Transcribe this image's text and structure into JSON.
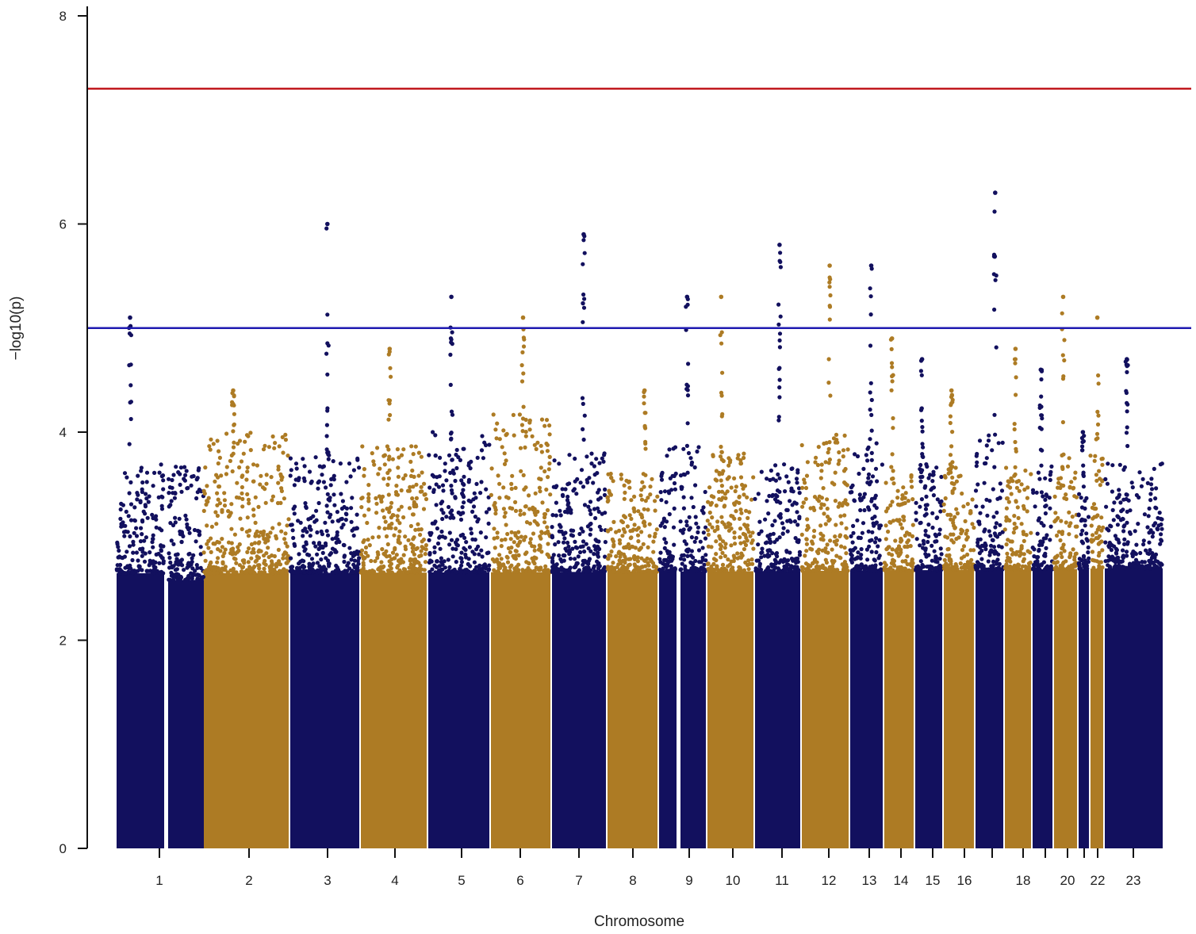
{
  "chart_data": {
    "type": "scatter",
    "subtype": "manhattan",
    "xlabel": "Chromosome",
    "ylabel": "−log10(p)",
    "ylim": [
      0,
      8
    ],
    "yticks": [
      0,
      2,
      4,
      6,
      8
    ],
    "grid": false,
    "legend": "none",
    "colors": {
      "odd_chromosome": "#12105e",
      "even_chromosome": "#ad7b24",
      "genome_wide_line": "#c0171c",
      "suggestive_line": "#1f1ab0"
    },
    "thresholds": [
      {
        "name": "genome-wide significance",
        "value": 7.3,
        "color": "#c0171c"
      },
      {
        "name": "suggestive significance",
        "value": 5.0,
        "color": "#1f1ab0"
      }
    ],
    "x_tick_labels": [
      "1",
      "2",
      "3",
      "4",
      "5",
      "6",
      "7",
      "8",
      "9",
      "10",
      "11",
      "12",
      "13",
      "14",
      "15",
      "16",
      "18",
      "20",
      "22",
      "23"
    ],
    "chromosomes": [
      {
        "chr": "1",
        "baseline_max": 3.3,
        "peak": 5.1
      },
      {
        "chr": "2",
        "baseline_max": 3.6,
        "peak": 4.4
      },
      {
        "chr": "3",
        "baseline_max": 3.4,
        "peak": 6.0
      },
      {
        "chr": "4",
        "baseline_max": 3.5,
        "peak": 4.8
      },
      {
        "chr": "5",
        "baseline_max": 3.6,
        "peak": 5.3
      },
      {
        "chr": "6",
        "baseline_max": 3.8,
        "peak": 5.1
      },
      {
        "chr": "7",
        "baseline_max": 3.4,
        "peak": 5.9
      },
      {
        "chr": "8",
        "baseline_max": 3.2,
        "peak": 4.4
      },
      {
        "chr": "9",
        "baseline_max": 3.5,
        "peak": 5.3
      },
      {
        "chr": "10",
        "baseline_max": 3.4,
        "peak": 5.3
      },
      {
        "chr": "11",
        "baseline_max": 3.3,
        "peak": 5.8
      },
      {
        "chr": "12",
        "baseline_max": 3.6,
        "peak": 5.6
      },
      {
        "chr": "13",
        "baseline_max": 3.5,
        "peak": 5.6
      },
      {
        "chr": "14",
        "baseline_max": 3.2,
        "peak": 4.9
      },
      {
        "chr": "15",
        "baseline_max": 3.3,
        "peak": 4.7
      },
      {
        "chr": "16",
        "baseline_max": 3.3,
        "peak": 4.4
      },
      {
        "chr": "17",
        "baseline_max": 3.6,
        "peak": 6.3
      },
      {
        "chr": "18",
        "baseline_max": 3.3,
        "peak": 4.8
      },
      {
        "chr": "19",
        "baseline_max": 3.3,
        "peak": 4.6
      },
      {
        "chr": "20",
        "baseline_max": 3.4,
        "peak": 5.3
      },
      {
        "chr": "21",
        "baseline_max": 3.1,
        "peak": 4.0
      },
      {
        "chr": "22",
        "baseline_max": 3.4,
        "peak": 5.1
      },
      {
        "chr": "23",
        "baseline_max": 3.3,
        "peak": 4.7
      }
    ]
  }
}
